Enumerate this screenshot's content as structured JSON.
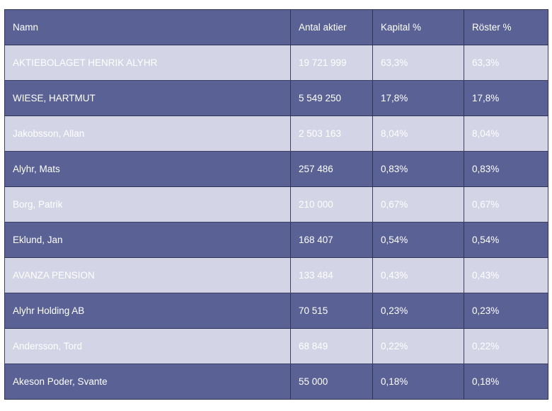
{
  "table": {
    "headers": {
      "name": "Namn",
      "shares": "Antal aktier",
      "capital": "Kapital %",
      "votes": "Röster %"
    },
    "rows": [
      {
        "name": "AKTIEBOLAGET HENRIK ALYHR",
        "shares": "19 721 999",
        "capital": "63,3%",
        "votes": "63,3%"
      },
      {
        "name": "WIESE, HARTMUT",
        "shares": "5 549 250",
        "capital": "17,8%",
        "votes": "17,8%"
      },
      {
        "name": "Jakobsson, Allan",
        "shares": "2 503 163",
        "capital": "8,04%",
        "votes": "8,04%"
      },
      {
        "name": "Alyhr, Mats",
        "shares": "257 486",
        "capital": "0,83%",
        "votes": "0,83%"
      },
      {
        "name": "Borg, Patrik",
        "shares": "210 000",
        "capital": "0,67%",
        "votes": "0,67%"
      },
      {
        "name": "Eklund, Jan",
        "shares": "168 407",
        "capital": "0,54%",
        "votes": "0,54%"
      },
      {
        "name": "AVANZA PENSION",
        "shares": "133 484",
        "capital": "0,43%",
        "votes": "0,43%"
      },
      {
        "name": "Alyhr Holding AB",
        "shares": "70 515",
        "capital": "0,23%",
        "votes": "0,23%"
      },
      {
        "name": "Andersson, Tord",
        "shares": "68 849",
        "capital": "0,22%",
        "votes": "0,22%"
      },
      {
        "name": "Akeson Poder, Svante",
        "shares": "55 000",
        "capital": "0,18%",
        "votes": "0,18%"
      }
    ]
  },
  "colors": {
    "row_dark": "#5a6194",
    "row_light": "#d3d4e5",
    "text": "#ffffff"
  }
}
